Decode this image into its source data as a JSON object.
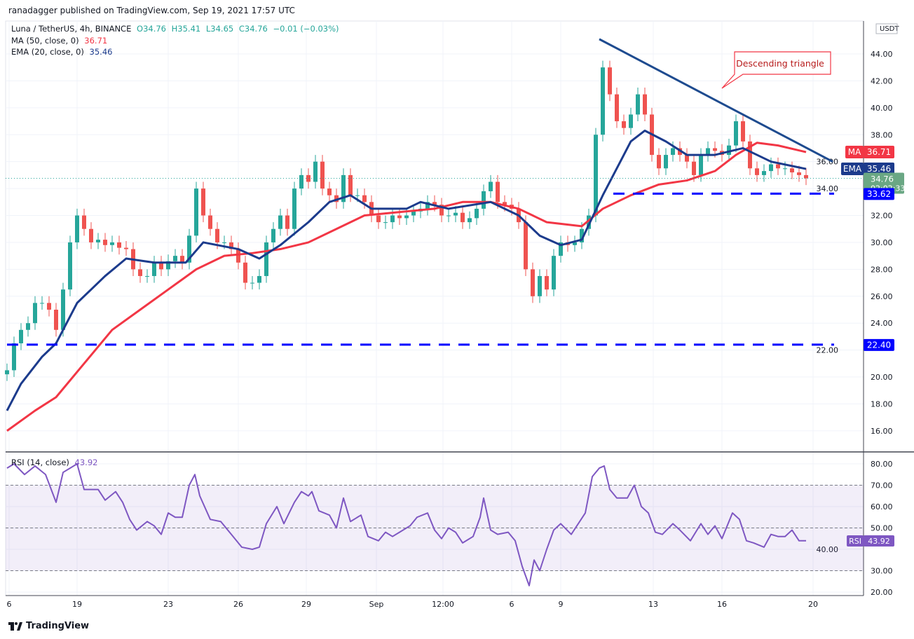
{
  "credit": "ranadagger published on TradingView.com, Sep 19, 2021 17:57 UTC",
  "legend": {
    "symbol": "Luna / TetherUS, 4h, BINANCE",
    "o": "O34.76",
    "h": "H35.41",
    "l": "L34.65",
    "c": "C34.76",
    "chg": "−0.01 (−0.03%)",
    "ma_label": "MA (50, close, 0)",
    "ma_value": "36.71",
    "ema_label": "EMA (20, close, 0)",
    "ema_value": "35.46",
    "rsi_label": "RSI (14, close)",
    "rsi_value": "43.92"
  },
  "footer": "TradingView",
  "colors": {
    "up": "#26a69a",
    "down": "#ef5350",
    "ma": "#f23645",
    "ema": "#1c3b8c",
    "rsi": "#7e57c2",
    "support": "#0000ff",
    "trend": "#1e4b8f"
  },
  "chart_data": {
    "type": "candlestick",
    "currency": "USDT",
    "ylim": [
      14.5,
      46
    ],
    "yticks": [
      "44.00",
      "42.00",
      "40.00",
      "38.00",
      "36.00",
      "34.00",
      "32.00",
      "30.00",
      "28.00",
      "26.00",
      "24.00",
      "22.00",
      "20.00",
      "18.00",
      "16.00"
    ],
    "xticks": [
      {
        "label": "6",
        "i": 0.3
      },
      {
        "label": "19",
        "i": 10
      },
      {
        "label": "23",
        "i": 23
      },
      {
        "label": "26",
        "i": 33
      },
      {
        "label": "29",
        "i": 42.7
      },
      {
        "label": "Sep",
        "i": 52.7
      },
      {
        "label": "12:00",
        "i": 62.2
      },
      {
        "label": "6",
        "i": 72
      },
      {
        "label": "9",
        "i": 79
      },
      {
        "label": "13",
        "i": 92.2
      },
      {
        "label": "16",
        "i": 102
      },
      {
        "label": "20",
        "i": 115
      }
    ],
    "closes": [
      20.5,
      22.5,
      23.5,
      24,
      25.5,
      25.5,
      25,
      23.5,
      26.5,
      30,
      32,
      31,
      30,
      30.2,
      29.8,
      30,
      29.6,
      29.5,
      28,
      27.5,
      27.5,
      28.5,
      28,
      28.6,
      29,
      28.5,
      30.5,
      34,
      32,
      31,
      30,
      30,
      29.5,
      28.5,
      27,
      27,
      27.5,
      30,
      31,
      32,
      31,
      34,
      35,
      34.5,
      36,
      34,
      33.5,
      33,
      35,
      33.5,
      33.5,
      33,
      32,
      31.5,
      31.5,
      32,
      31.8,
      32,
      32.3,
      32.5,
      33,
      32.8,
      32,
      32,
      32.2,
      31.5,
      31.8,
      32.5,
      33.8,
      34.5,
      33,
      32.8,
      32.5,
      31.5,
      28,
      26,
      27.5,
      26.5,
      29,
      30,
      29.8,
      30,
      31,
      32,
      38,
      43,
      41,
      39,
      38.5,
      39.5,
      41,
      39.5,
      36.5,
      35.5,
      36.5,
      37,
      36.5,
      36,
      35,
      36.5,
      37,
      36.8,
      36.5,
      37.2,
      39,
      37.5,
      35.5,
      35,
      35.3,
      35.8,
      35.5,
      35.5,
      35.2,
      35,
      34.76
    ],
    "ema20": [
      [
        0,
        17.5
      ],
      [
        2,
        19.5
      ],
      [
        5,
        21.5
      ],
      [
        7,
        22.5
      ],
      [
        10,
        25.5
      ],
      [
        14,
        27.5
      ],
      [
        17,
        28.8
      ],
      [
        21,
        28.5
      ],
      [
        25.5,
        28.5
      ],
      [
        28,
        30
      ],
      [
        33,
        29.5
      ],
      [
        36,
        28.8
      ],
      [
        39,
        29.8
      ],
      [
        43,
        31.5
      ],
      [
        46,
        33
      ],
      [
        49,
        33.5
      ],
      [
        52,
        32.5
      ],
      [
        57,
        32.5
      ],
      [
        59,
        33
      ],
      [
        63,
        32.5
      ],
      [
        69,
        33
      ],
      [
        73,
        32
      ],
      [
        76,
        30.5
      ],
      [
        79,
        29.8
      ],
      [
        82,
        30.2
      ],
      [
        85,
        33.5
      ],
      [
        89,
        37.5
      ],
      [
        91,
        38.3
      ],
      [
        94,
        37.5
      ],
      [
        97,
        36.5
      ],
      [
        101,
        36.5
      ],
      [
        105,
        37
      ],
      [
        107,
        36.5
      ],
      [
        109,
        36
      ],
      [
        114,
        35.46
      ]
    ],
    "ma50": [
      [
        0,
        16
      ],
      [
        4,
        17.5
      ],
      [
        7,
        18.5
      ],
      [
        11,
        21
      ],
      [
        15,
        23.5
      ],
      [
        19,
        25
      ],
      [
        23,
        26.5
      ],
      [
        27,
        28
      ],
      [
        31,
        29
      ],
      [
        35,
        29.2
      ],
      [
        39,
        29.5
      ],
      [
        43,
        30
      ],
      [
        47,
        31
      ],
      [
        51,
        32
      ],
      [
        55,
        32.2
      ],
      [
        61,
        32.5
      ],
      [
        65,
        33
      ],
      [
        69,
        33
      ],
      [
        73,
        32.5
      ],
      [
        77,
        31.5
      ],
      [
        82,
        31.2
      ],
      [
        85,
        32.5
      ],
      [
        89,
        33.5
      ],
      [
        93,
        34.3
      ],
      [
        97,
        34.6
      ],
      [
        101,
        35.3
      ],
      [
        104,
        36.5
      ],
      [
        107,
        37.4
      ],
      [
        110,
        37.2
      ],
      [
        114,
        36.71
      ]
    ],
    "last": {
      "price": "34.76",
      "countdown": "02:02:33",
      "ma": "36.71",
      "ema": "35.46",
      "support": "33.62"
    },
    "support_levels": [
      {
        "value": 33.62,
        "label": "33.62",
        "from_i": 86.5
      },
      {
        "value": 22.4,
        "label": "22.40",
        "from_i": 0
      }
    ],
    "trendline": [
      [
        84.5,
        45.1
      ],
      [
        117.8,
        36.0
      ]
    ],
    "annotation": "Descending triangle",
    "rsi": {
      "ylim": [
        18,
        84
      ],
      "yticks": [
        "80.00",
        "70.00",
        "60.00",
        "50.00",
        "40.00",
        "30.00",
        "20.00"
      ],
      "band": [
        30,
        70
      ],
      "values": [
        [
          0,
          78
        ],
        [
          1,
          80
        ],
        [
          2.5,
          75
        ],
        [
          4,
          79
        ],
        [
          5.5,
          75
        ],
        [
          7,
          62
        ],
        [
          8,
          76
        ],
        [
          9,
          78
        ],
        [
          10,
          80
        ],
        [
          11,
          68
        ],
        [
          13,
          68
        ],
        [
          14,
          63
        ],
        [
          15.5,
          67
        ],
        [
          16.5,
          62
        ],
        [
          17.5,
          54
        ],
        [
          18.5,
          49
        ],
        [
          20,
          53
        ],
        [
          21,
          51
        ],
        [
          22,
          47
        ],
        [
          23,
          57
        ],
        [
          24,
          55
        ],
        [
          25,
          55
        ],
        [
          26,
          70
        ],
        [
          26.8,
          75
        ],
        [
          27.5,
          65
        ],
        [
          29,
          54
        ],
        [
          30.5,
          53
        ],
        [
          32,
          47
        ],
        [
          33.5,
          41
        ],
        [
          35,
          40
        ],
        [
          36,
          41
        ],
        [
          37,
          52
        ],
        [
          38.5,
          60
        ],
        [
          39.5,
          52
        ],
        [
          41,
          62
        ],
        [
          42,
          67
        ],
        [
          43,
          65
        ],
        [
          43.5,
          67
        ],
        [
          44.5,
          58
        ],
        [
          46,
          56
        ],
        [
          47,
          50
        ],
        [
          48,
          64
        ],
        [
          49,
          53
        ],
        [
          50.5,
          56
        ],
        [
          51.5,
          46
        ],
        [
          53,
          44
        ],
        [
          54,
          48
        ],
        [
          55,
          46
        ],
        [
          56,
          48
        ],
        [
          57.5,
          51
        ],
        [
          58.5,
          55
        ],
        [
          60,
          57
        ],
        [
          61,
          49
        ],
        [
          62,
          45
        ],
        [
          63,
          50
        ],
        [
          64,
          48
        ],
        [
          65,
          43
        ],
        [
          66.5,
          46
        ],
        [
          67.5,
          55
        ],
        [
          68,
          64
        ],
        [
          69,
          49
        ],
        [
          70,
          47
        ],
        [
          71.5,
          48
        ],
        [
          72.5,
          44
        ],
        [
          73.5,
          32
        ],
        [
          74.5,
          23
        ],
        [
          75.2,
          35
        ],
        [
          76,
          30
        ],
        [
          77,
          40
        ],
        [
          78,
          49
        ],
        [
          79,
          52
        ],
        [
          80.5,
          47
        ],
        [
          81.5,
          52
        ],
        [
          82.5,
          57
        ],
        [
          83.5,
          74
        ],
        [
          84.5,
          78
        ],
        [
          85.2,
          79
        ],
        [
          86,
          68
        ],
        [
          87,
          64
        ],
        [
          88.5,
          64
        ],
        [
          89.5,
          70
        ],
        [
          90.5,
          60
        ],
        [
          91.5,
          57
        ],
        [
          92.5,
          48
        ],
        [
          93.5,
          47
        ],
        [
          95,
          52
        ],
        [
          96,
          49
        ],
        [
          97.5,
          44
        ],
        [
          99,
          52
        ],
        [
          100,
          47
        ],
        [
          101,
          51
        ],
        [
          102,
          45
        ],
        [
          103.5,
          57
        ],
        [
          104.5,
          54
        ],
        [
          105.5,
          44
        ],
        [
          106.5,
          43
        ],
        [
          108,
          41
        ],
        [
          109,
          47
        ],
        [
          110,
          46
        ],
        [
          111,
          46
        ],
        [
          112,
          49
        ],
        [
          113,
          44
        ],
        [
          114,
          44
        ]
      ]
    }
  }
}
